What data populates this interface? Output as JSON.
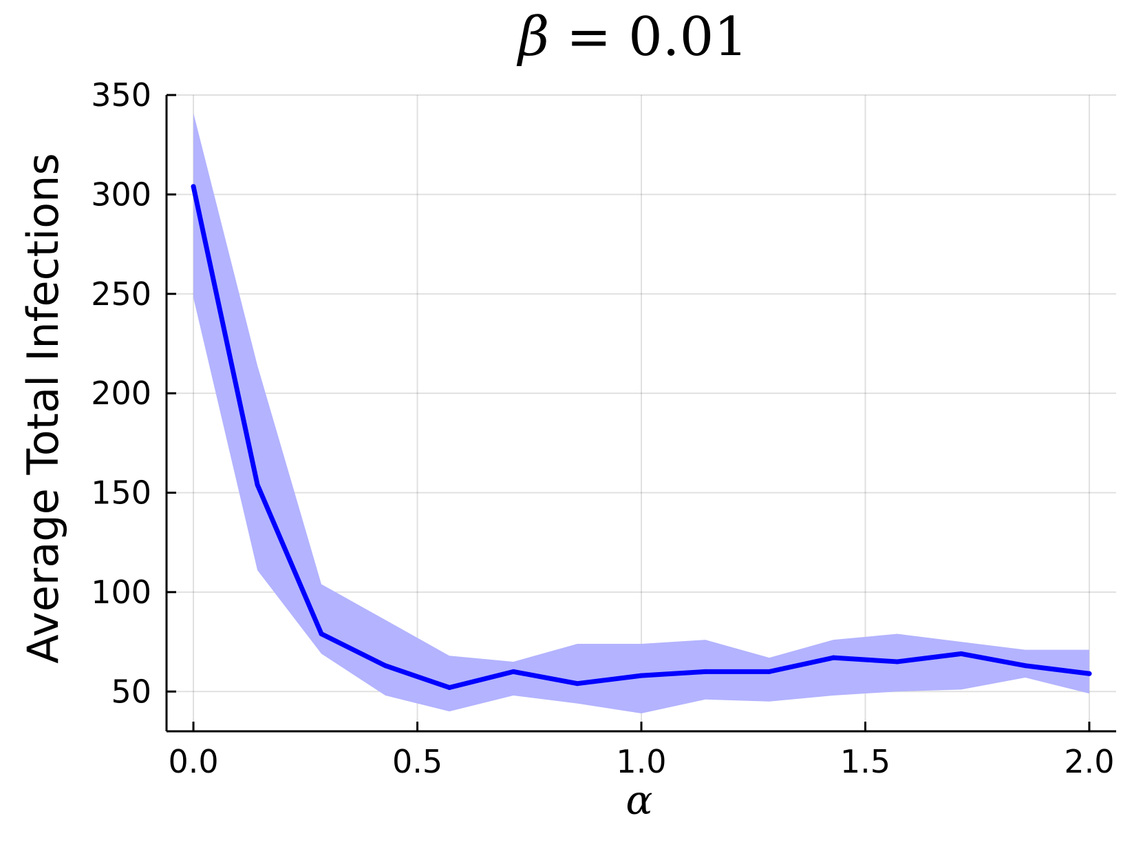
{
  "chart_data": {
    "type": "line",
    "title": {
      "symbol": "β",
      "rest": " = 0.01"
    },
    "xlabel": "α",
    "ylabel": "Average Total Infections",
    "xlim": [
      -0.06,
      2.06
    ],
    "ylim": [
      30,
      350
    ],
    "x_ticks": [
      "0.0",
      "0.5",
      "1.0",
      "1.5",
      "2.0"
    ],
    "y_ticks": [
      "50",
      "100",
      "150",
      "200",
      "250",
      "300",
      "350"
    ],
    "grid": true,
    "legend": "none",
    "series": [
      {
        "x": [
          0.0,
          0.1429,
          0.2857,
          0.4286,
          0.5714,
          0.7143,
          0.8571,
          1.0,
          1.1429,
          1.2857,
          1.4286,
          1.5714,
          1.7143,
          1.8571,
          2.0
        ],
        "values": [
          304,
          154,
          79,
          63,
          52,
          60,
          54,
          58,
          60,
          60,
          67,
          65,
          69,
          63,
          59
        ],
        "lower": [
          248,
          111,
          69,
          48,
          40,
          48,
          44,
          39,
          46,
          45,
          48,
          50,
          51,
          57,
          49
        ],
        "upper": [
          341,
          214,
          104,
          86,
          68,
          65,
          74,
          74,
          76,
          67,
          76,
          79,
          75,
          71,
          71
        ],
        "color": "#0000ff",
        "band_color": "#b3b3ff"
      }
    ]
  }
}
